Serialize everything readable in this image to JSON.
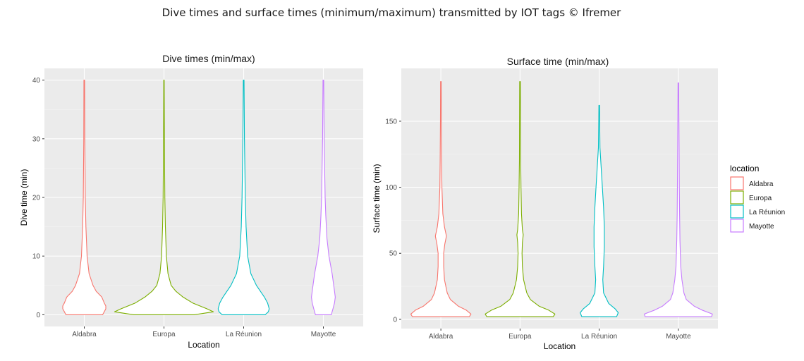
{
  "figure": {
    "title": "Dive times and surface times (minimum/maximum) transmitted by IOT tags © Ifremer"
  },
  "legend": {
    "title": "location",
    "items": [
      "Aldabra",
      "Europa",
      "La Réunion",
      "Mayotte"
    ],
    "colors": [
      "#F8766D",
      "#7CAE00",
      "#00BFC4",
      "#C77CFF"
    ],
    "position": "right"
  },
  "chart_data": [
    {
      "type": "violin",
      "title": "Dive times (min/max)",
      "xlabel": "Location",
      "ylabel": "Dive time (min)",
      "categories": [
        "Aldabra",
        "Europa",
        "La Réunion",
        "Mayotte"
      ],
      "yticks": [
        0,
        10,
        20,
        30,
        40
      ],
      "ylim": [
        -2,
        42
      ],
      "grid": true,
      "series": [
        {
          "name": "Aldabra",
          "min": 0,
          "max": 40,
          "profile": [
            [
              0,
              0.23
            ],
            [
              0.5,
              0.25
            ],
            [
              1,
              0.27
            ],
            [
              1.5,
              0.27
            ],
            [
              2,
              0.25
            ],
            [
              3,
              0.22
            ],
            [
              4,
              0.15
            ],
            [
              5,
              0.11
            ],
            [
              7,
              0.06
            ],
            [
              10,
              0.035
            ],
            [
              15,
              0.02
            ],
            [
              20,
              0.012
            ],
            [
              30,
              0.006
            ],
            [
              40,
              0.004
            ]
          ]
        },
        {
          "name": "Europa",
          "min": 0,
          "max": 40,
          "profile": [
            [
              0,
              0.38
            ],
            [
              0.5,
              0.62
            ],
            [
              1,
              0.54
            ],
            [
              2,
              0.36
            ],
            [
              3,
              0.24
            ],
            [
              4,
              0.15
            ],
            [
              5,
              0.09
            ],
            [
              7,
              0.05
            ],
            [
              10,
              0.03
            ],
            [
              15,
              0.018
            ],
            [
              20,
              0.011
            ],
            [
              30,
              0.005
            ],
            [
              40,
              0.003
            ]
          ]
        },
        {
          "name": "La Réunion",
          "min": 0,
          "max": 40,
          "profile": [
            [
              0,
              0.27
            ],
            [
              0.5,
              0.31
            ],
            [
              1,
              0.32
            ],
            [
              2,
              0.3
            ],
            [
              3,
              0.26
            ],
            [
              4,
              0.21
            ],
            [
              5,
              0.16
            ],
            [
              7,
              0.09
            ],
            [
              10,
              0.05
            ],
            [
              15,
              0.03
            ],
            [
              20,
              0.02
            ],
            [
              30,
              0.01
            ],
            [
              40,
              0.004
            ]
          ]
        },
        {
          "name": "Mayotte",
          "min": 0,
          "max": 40,
          "profile": [
            [
              0,
              0.1
            ],
            [
              0.5,
              0.11
            ],
            [
              1,
              0.12
            ],
            [
              2,
              0.14
            ],
            [
              3,
              0.15
            ],
            [
              4,
              0.14
            ],
            [
              5,
              0.13
            ],
            [
              7,
              0.11
            ],
            [
              10,
              0.07
            ],
            [
              13,
              0.045
            ],
            [
              17,
              0.03
            ],
            [
              20,
              0.022
            ],
            [
              30,
              0.01
            ],
            [
              40,
              0.004
            ]
          ]
        }
      ]
    },
    {
      "type": "violin",
      "title": "Surface time (min/max)",
      "xlabel": "Location",
      "ylabel": "Surface time (min)",
      "categories": [
        "Aldabra",
        "Europa",
        "La Réunion",
        "Mayotte"
      ],
      "yticks": [
        0,
        50,
        100,
        150
      ],
      "ylim": [
        -7,
        190
      ],
      "grid": true,
      "series": [
        {
          "name": "Aldabra",
          "min": 2,
          "max": 180,
          "profile": [
            [
              2,
              0.36
            ],
            [
              4,
              0.38
            ],
            [
              7,
              0.32
            ],
            [
              10,
              0.22
            ],
            [
              15,
              0.12
            ],
            [
              20,
              0.08
            ],
            [
              30,
              0.045
            ],
            [
              40,
              0.035
            ],
            [
              50,
              0.035
            ],
            [
              57,
              0.05
            ],
            [
              63,
              0.07
            ],
            [
              70,
              0.045
            ],
            [
              80,
              0.025
            ],
            [
              100,
              0.013
            ],
            [
              120,
              0.009
            ],
            [
              150,
              0.006
            ],
            [
              180,
              0.004
            ]
          ]
        },
        {
          "name": "Europa",
          "min": 2,
          "max": 180,
          "profile": [
            [
              2,
              0.42
            ],
            [
              4,
              0.44
            ],
            [
              7,
              0.36
            ],
            [
              10,
              0.24
            ],
            [
              15,
              0.13
            ],
            [
              20,
              0.085
            ],
            [
              30,
              0.045
            ],
            [
              40,
              0.03
            ],
            [
              50,
              0.025
            ],
            [
              58,
              0.03
            ],
            [
              64,
              0.04
            ],
            [
              68,
              0.03
            ],
            [
              80,
              0.018
            ],
            [
              100,
              0.012
            ],
            [
              120,
              0.008
            ],
            [
              150,
              0.006
            ],
            [
              180,
              0.004
            ]
          ]
        },
        {
          "name": "La Réunion",
          "min": 2,
          "max": 162,
          "profile": [
            [
              2,
              0.22
            ],
            [
              5,
              0.24
            ],
            [
              8,
              0.2
            ],
            [
              12,
              0.12
            ],
            [
              20,
              0.055
            ],
            [
              30,
              0.045
            ],
            [
              40,
              0.055
            ],
            [
              55,
              0.065
            ],
            [
              70,
              0.065
            ],
            [
              85,
              0.055
            ],
            [
              100,
              0.04
            ],
            [
              115,
              0.025
            ],
            [
              130,
              0.01
            ],
            [
              150,
              0.006
            ],
            [
              162,
              0.004
            ]
          ]
        },
        {
          "name": "Mayotte",
          "min": 2,
          "max": 179,
          "profile": [
            [
              2,
              0.42
            ],
            [
              4,
              0.43
            ],
            [
              7,
              0.3
            ],
            [
              10,
              0.2
            ],
            [
              15,
              0.1
            ],
            [
              20,
              0.07
            ],
            [
              30,
              0.045
            ],
            [
              40,
              0.03
            ],
            [
              60,
              0.02
            ],
            [
              80,
              0.015
            ],
            [
              100,
              0.012
            ],
            [
              130,
              0.009
            ],
            [
              160,
              0.006
            ],
            [
              179,
              0.004
            ]
          ]
        }
      ]
    }
  ]
}
